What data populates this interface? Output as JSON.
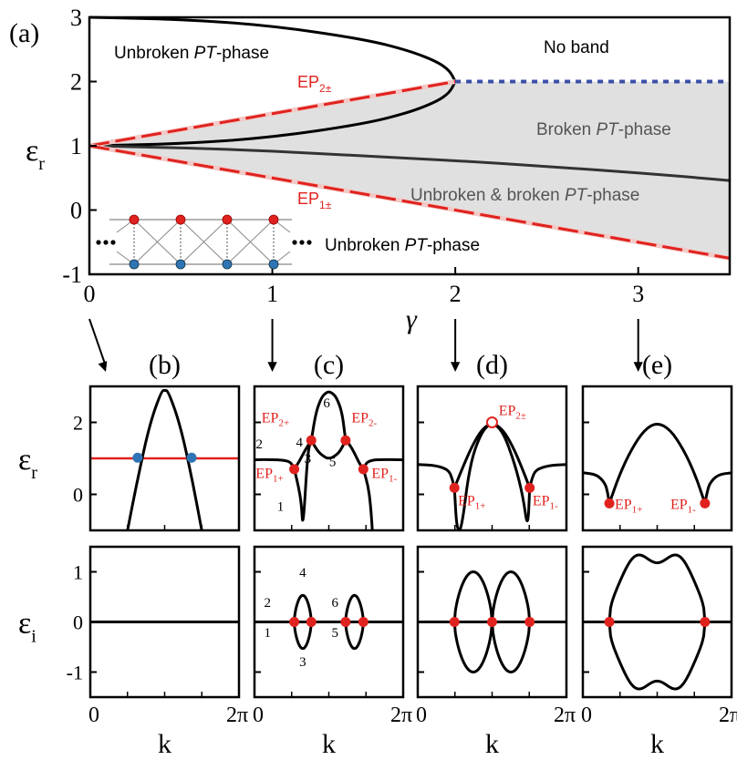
{
  "colors": {
    "red": "#e0221e",
    "blue": "#2f75b5",
    "gray_fill": "#e0e0e0",
    "black": "#000000",
    "dark_curve": "#333333",
    "blue_dash": "#3b4fa8"
  },
  "chart_data": [
    {
      "id": "a",
      "type": "line",
      "panel_label": "(a)",
      "xlabel": "γ",
      "ylabel": "ε",
      "ylabel_sub": "r",
      "xlim": [
        0,
        3.5
      ],
      "ylim": [
        -1,
        3
      ],
      "xticks": [
        0,
        1,
        2,
        3
      ],
      "yticks": [
        -1,
        0,
        1,
        2,
        3
      ],
      "xtick_labels": [
        "0",
        "1",
        "2",
        "3"
      ],
      "ytick_labels": [
        "-1",
        "0",
        "1",
        "2",
        "3"
      ],
      "annotations": {
        "unbroken_top": [
          "Unbroken ",
          "PT",
          "-phase"
        ],
        "no_band": "No band",
        "broken": [
          "Broken ",
          "PT",
          "-phase"
        ],
        "mixed": [
          "Unbroken & broken ",
          "PT",
          "-phase"
        ],
        "unbroken_bottom": [
          "Unbroken ",
          "PT",
          "-phase"
        ],
        "ep2": [
          "EP",
          "2±"
        ],
        "ep1": [
          "EP",
          "1±"
        ]
      },
      "series": [
        {
          "role": "outer-upper",
          "style": "black",
          "x": [
            0,
            0.5,
            1,
            1.5,
            1.75,
            1.9,
            1.97,
            2.0
          ],
          "y": [
            3,
            2.97,
            2.87,
            2.66,
            2.48,
            2.31,
            2.17,
            2.0
          ]
        },
        {
          "role": "inner-upper",
          "style": "black",
          "x": [
            0,
            0.5,
            1,
            1.5,
            1.75,
            1.9,
            1.97,
            2.0
          ],
          "y": [
            1,
            1.03,
            1.13,
            1.34,
            1.52,
            1.69,
            1.83,
            2.0
          ]
        },
        {
          "role": "lower",
          "style": "dark",
          "x": [
            0,
            0.5,
            1,
            1.5,
            2,
            2.5,
            3,
            3.5
          ],
          "y": [
            1,
            0.97,
            0.92,
            0.84,
            0.77,
            0.68,
            0.58,
            0.46
          ]
        },
        {
          "role": "ep2-line",
          "style": "red-dashed",
          "x": [
            0,
            2
          ],
          "y": [
            1,
            2
          ]
        },
        {
          "role": "ep1-line",
          "style": "red-dashed",
          "x": [
            0,
            3.5
          ],
          "y": [
            1,
            -0.75
          ]
        },
        {
          "role": "no-band-boundary",
          "style": "blue-dashed",
          "x": [
            2,
            3.5
          ],
          "y": [
            2,
            2
          ]
        }
      ],
      "shaded_region": {
        "x": [
          0,
          2,
          3.5,
          3.5,
          0
        ],
        "y": [
          1,
          2,
          2,
          -0.75,
          1
        ]
      },
      "arrows_at_gamma": [
        0,
        1,
        2,
        3
      ]
    },
    {
      "id": "b",
      "type": "line",
      "panel_label": "(b)",
      "xlabel": "k",
      "xtick_labels": [
        "0",
        "2π"
      ],
      "top": {
        "ylabel": "ε",
        "ylabel_sub": "r",
        "ylim": [
          -1,
          3
        ],
        "yticks": [
          0,
          2
        ],
        "ytick_labels": [
          "0",
          "2"
        ],
        "series": [
          {
            "style": "red",
            "x": [
              0,
              6.283
            ],
            "y": [
              1,
              1
            ]
          },
          {
            "style": "black",
            "x": [
              1.571,
              2.0,
              2.5,
              3.0,
              3.1416,
              3.3,
              3.8,
              4.3,
              4.712
            ],
            "y": [
              -1,
              0.43,
              1.93,
              2.86,
              2.9,
              2.86,
              1.93,
              0.43,
              -1
            ]
          }
        ],
        "points": [
          {
            "x": 2.0,
            "y": 1.02,
            "color": "#2f75b5"
          },
          {
            "x": 4.28,
            "y": 1.02,
            "color": "#2f75b5"
          }
        ],
        "labels": []
      },
      "bottom": {
        "ylabel": "ε",
        "ylabel_sub": "i",
        "ylim": [
          -1.5,
          1.5
        ],
        "yticks": [
          -1,
          0,
          1
        ],
        "ytick_labels": [
          "-1",
          "0",
          "1"
        ],
        "series": [
          {
            "style": "black",
            "x": [
              0,
              6.283
            ],
            "y": [
              0,
              0
            ]
          }
        ],
        "points": [],
        "labels": []
      }
    },
    {
      "id": "c",
      "type": "line",
      "panel_label": "(c)",
      "xlabel": "k",
      "xtick_labels": [
        "0",
        "2π"
      ],
      "top": {
        "ylim": [
          -1,
          3
        ],
        "yticks": [
          0,
          2
        ],
        "series": [
          {
            "style": "black",
            "x": [
              0,
              0.6,
              1.3,
              1.55,
              1.68
            ],
            "y": [
              0.96,
              0.97,
              0.95,
              0.88,
              0.7
            ]
          },
          {
            "style": "black",
            "x": [
              1.68,
              1.85,
              1.98,
              2.05,
              2.25,
              2.4
            ],
            "y": [
              0.7,
              0.25,
              -0.25,
              -1,
              1.2,
              1.5
            ]
          },
          {
            "style": "black",
            "x": [
              1.68,
              1.88,
              2.1,
              2.3,
              2.4
            ],
            "y": [
              0.7,
              0.9,
              1.18,
              1.4,
              1.5
            ]
          },
          {
            "style": "black",
            "x": [
              2.4,
              2.6,
              2.85,
              3.05,
              3.1416,
              3.24,
              3.45,
              3.7,
              3.85
            ],
            "y": [
              1.5,
              2.3,
              2.72,
              2.83,
              2.85,
              2.83,
              2.72,
              2.3,
              1.5
            ]
          },
          {
            "style": "black",
            "x": [
              2.4,
              2.7,
              3.0,
              3.1416,
              3.3,
              3.6,
              3.85
            ],
            "y": [
              1.5,
              1.17,
              1.02,
              1.0,
              1.02,
              1.17,
              1.5
            ]
          },
          {
            "style": "black",
            "x": [
              3.85,
              4.0,
              4.2,
              4.4,
              4.6
            ],
            "y": [
              1.5,
              1.4,
              1.18,
              0.9,
              0.7
            ]
          },
          {
            "style": "black",
            "x": [
              4.6,
              4.73,
              4.95,
              5.3,
              6.283
            ],
            "y": [
              0.7,
              0.88,
              0.95,
              0.97,
              0.96
            ]
          },
          {
            "style": "black",
            "x": [
              4.6,
              4.8,
              4.9,
              4.98
            ],
            "y": [
              0.7,
              0.25,
              -0.25,
              -1
            ]
          }
        ],
        "points": [
          {
            "x": 1.68,
            "y": 0.7,
            "color": "#e0221e"
          },
          {
            "x": 2.4,
            "y": 1.5,
            "color": "#e0221e"
          },
          {
            "x": 3.85,
            "y": 1.5,
            "color": "#e0221e"
          },
          {
            "x": 4.6,
            "y": 0.7,
            "color": "#e0221e"
          }
        ],
        "labels": [
          {
            "kind": "ep",
            "base": "EP",
            "sub": "1+",
            "x": 0.05,
            "y": 0.45
          },
          {
            "kind": "ep",
            "base": "EP",
            "sub": "2+",
            "x": 0.3,
            "y": 2.0
          },
          {
            "kind": "ep",
            "base": "EP",
            "sub": "2-",
            "x": 4.1,
            "y": 2.0
          },
          {
            "kind": "ep",
            "base": "EP",
            "sub": "1-",
            "x": 4.95,
            "y": 0.45
          },
          {
            "kind": "num",
            "text": "1",
            "x": 1.1,
            "y": -0.45
          },
          {
            "kind": "num",
            "text": "2",
            "x": 0.2,
            "y": 1.28
          },
          {
            "kind": "num",
            "text": "3",
            "x": 2.25,
            "y": 0.87
          },
          {
            "kind": "num",
            "text": "4",
            "x": 1.9,
            "y": 1.33
          },
          {
            "kind": "num",
            "text": "5",
            "x": 3.3,
            "y": 0.78
          },
          {
            "kind": "num",
            "text": "6",
            "x": 3.05,
            "y": 2.42
          }
        ]
      },
      "bottom": {
        "ylim": [
          -1.5,
          1.5
        ],
        "yticks": [
          -1,
          0,
          1
        ],
        "series": [
          {
            "style": "black",
            "x": [
              0,
              6.283
            ],
            "y": [
              0,
              0
            ]
          },
          {
            "style": "black",
            "kind": "loop",
            "x0": 1.68,
            "x1": 2.4,
            "amp": 0.53
          },
          {
            "style": "black",
            "kind": "loop",
            "x0": 3.85,
            "x1": 4.6,
            "amp": 0.53
          }
        ],
        "points": [
          {
            "x": 1.68,
            "y": 0,
            "color": "#e0221e"
          },
          {
            "x": 2.4,
            "y": 0,
            "color": "#e0221e"
          },
          {
            "x": 3.85,
            "y": 0,
            "color": "#e0221e"
          },
          {
            "x": 4.6,
            "y": 0,
            "color": "#e0221e"
          }
        ],
        "labels": [
          {
            "kind": "num",
            "text": "1",
            "x": 0.55,
            "y": -0.3
          },
          {
            "kind": "num",
            "text": "2",
            "x": 0.55,
            "y": 0.3
          },
          {
            "kind": "num",
            "text": "3",
            "x": 2.04,
            "y": -0.88
          },
          {
            "kind": "num",
            "text": "4",
            "x": 2.04,
            "y": 0.9
          },
          {
            "kind": "num",
            "text": "5",
            "x": 3.4,
            "y": -0.3
          },
          {
            "kind": "num",
            "text": "6",
            "x": 3.4,
            "y": 0.3
          }
        ]
      }
    },
    {
      "id": "d",
      "type": "line",
      "panel_label": "(d)",
      "xlabel": "k",
      "xtick_labels": [
        "0",
        "2π"
      ],
      "top": {
        "ylim": [
          -1,
          3
        ],
        "yticks": [
          0,
          2
        ],
        "series": [
          {
            "style": "black",
            "x": [
              0,
              0.8,
              1.3,
              1.45,
              1.55
            ],
            "y": [
              0.83,
              0.8,
              0.68,
              0.45,
              0.18
            ]
          },
          {
            "style": "black",
            "x": [
              1.55,
              1.65,
              1.85,
              2.2,
              2.7,
              3.1416,
              3.6,
              4.1,
              4.45,
              4.65,
              4.73
            ],
            "y": [
              0.18,
              -1,
              -1,
              0.85,
              1.75,
              2.0,
              1.75,
              0.85,
              -0.05,
              -1,
              0.18
            ]
          },
          {
            "style": "black",
            "x": [
              1.55,
              1.9,
              2.3,
              2.7,
              3.1416,
              3.6,
              4.0,
              4.4,
              4.73
            ],
            "y": [
              0.18,
              0.75,
              1.35,
              1.8,
              2.0,
              1.8,
              1.35,
              0.75,
              0.18
            ]
          },
          {
            "style": "black",
            "x": [
              4.73,
              4.83,
              4.98,
              5.5,
              6.283
            ],
            "y": [
              0.18,
              0.45,
              0.68,
              0.8,
              0.83
            ]
          }
        ],
        "points": [
          {
            "x": 1.55,
            "y": 0.18,
            "color": "#e0221e"
          },
          {
            "x": 4.73,
            "y": 0.18,
            "color": "#e0221e"
          },
          {
            "x": 3.1416,
            "y": 2.0,
            "color": "#e0221e",
            "hollow": true
          }
        ],
        "labels": [
          {
            "kind": "ep",
            "base": "EP",
            "sub": "2±",
            "x": 3.42,
            "y": 2.2
          },
          {
            "kind": "ep",
            "base": "EP",
            "sub": "1+",
            "x": 1.7,
            "y": -0.3
          },
          {
            "kind": "ep",
            "base": "EP",
            "sub": "1-",
            "x": 4.85,
            "y": -0.3
          }
        ]
      },
      "bottom": {
        "ylim": [
          -1.5,
          1.5
        ],
        "yticks": [
          -1,
          0,
          1
        ],
        "series": [
          {
            "style": "black",
            "x": [
              0,
              6.283
            ],
            "y": [
              0,
              0
            ]
          },
          {
            "style": "black",
            "kind": "loop",
            "x0": 1.55,
            "x1": 3.1416,
            "amp": 1.0
          },
          {
            "style": "black",
            "kind": "loop",
            "x0": 3.1416,
            "x1": 4.73,
            "amp": 1.0
          }
        ],
        "points": [
          {
            "x": 1.55,
            "y": 0,
            "color": "#e0221e"
          },
          {
            "x": 3.1416,
            "y": 0,
            "color": "#e0221e"
          },
          {
            "x": 4.73,
            "y": 0,
            "color": "#e0221e"
          }
        ],
        "labels": []
      }
    },
    {
      "id": "e",
      "type": "line",
      "panel_label": "(e)",
      "xlabel": "k",
      "xtick_labels": [
        "0",
        "2π"
      ],
      "top": {
        "ylim": [
          -1,
          3
        ],
        "yticks": [
          0,
          2
        ],
        "series": [
          {
            "style": "black",
            "x": [
              0,
              0.6,
              0.95,
              1.05,
              1.12
            ],
            "y": [
              0.6,
              0.55,
              0.3,
              0.05,
              -0.25
            ]
          },
          {
            "style": "black",
            "x": [
              1.12,
              1.55,
              2.05,
              2.6,
              3.1416,
              3.7,
              4.25,
              4.75,
              5.16
            ],
            "y": [
              -0.25,
              0.55,
              1.25,
              1.8,
              2.0,
              1.8,
              1.25,
              0.55,
              -0.25
            ]
          },
          {
            "style": "black",
            "x": [
              5.16,
              5.25,
              5.35,
              5.7,
              6.283
            ],
            "y": [
              -0.25,
              0.05,
              0.3,
              0.55,
              0.6
            ]
          }
        ],
        "points": [
          {
            "x": 1.12,
            "y": -0.25,
            "color": "#e0221e"
          },
          {
            "x": 5.16,
            "y": -0.25,
            "color": "#e0221e"
          }
        ],
        "labels": [
          {
            "kind": "ep",
            "base": "EP",
            "sub": "1+",
            "x": 1.35,
            "y": -0.4
          },
          {
            "kind": "ep",
            "base": "EP",
            "sub": "1-",
            "x": 3.7,
            "y": -0.4
          }
        ]
      },
      "bottom": {
        "ylim": [
          -1.5,
          1.5
        ],
        "yticks": [
          -1,
          0,
          1
        ],
        "series": [
          {
            "style": "black",
            "x": [
              0,
              6.283
            ],
            "y": [
              0,
              0
            ]
          },
          {
            "style": "black",
            "kind": "wave",
            "x0": 1.12,
            "x1": 5.16,
            "peak": 1.5,
            "mid": 1.18
          }
        ],
        "points": [
          {
            "x": 1.12,
            "y": 0,
            "color": "#e0221e"
          },
          {
            "x": 5.16,
            "y": 0,
            "color": "#e0221e"
          }
        ],
        "labels": []
      }
    }
  ]
}
